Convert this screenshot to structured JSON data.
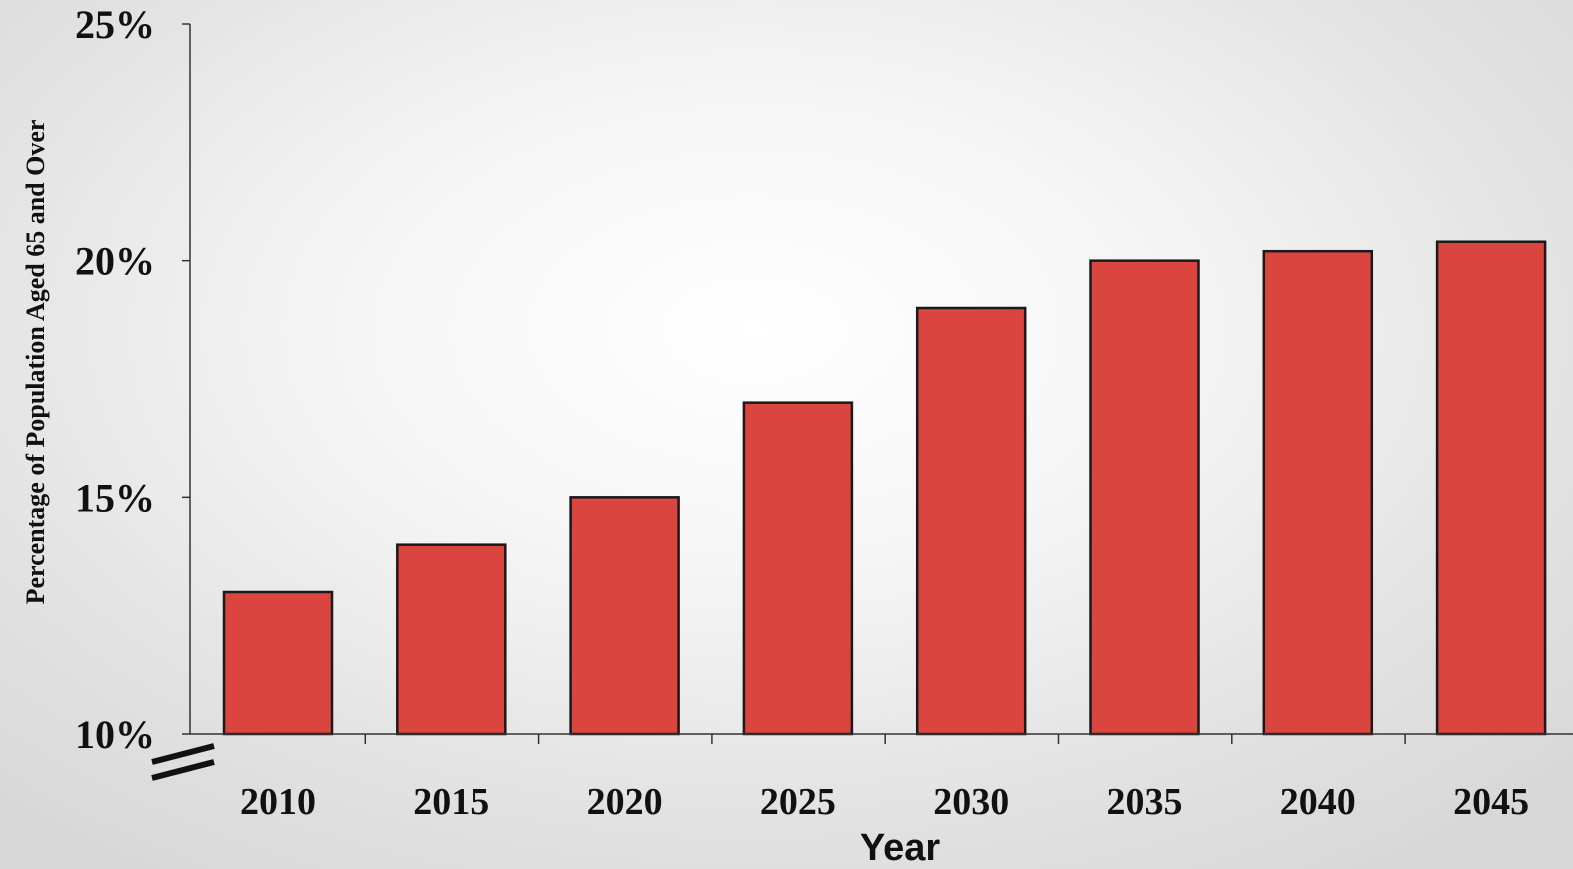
{
  "chart_data": {
    "type": "bar",
    "categories": [
      "2010",
      "2015",
      "2020",
      "2025",
      "2030",
      "2035",
      "2040",
      "2045"
    ],
    "series": [
      {
        "values": [
          13.0,
          14.0,
          15.0,
          17.0,
          19.0,
          20.0,
          20.2,
          20.4
        ]
      }
    ],
    "xlabel": "Year",
    "ylabel": "Percentage of Population Aged 65 and Over",
    "ylim": [
      10,
      25
    ],
    "yticks": [
      10,
      15,
      20,
      25
    ],
    "ytick_labels": [
      "10%",
      "15%",
      "20%",
      "25%"
    ],
    "axis_break": true,
    "grid": false,
    "legend": "none",
    "colors": {
      "bar": "#da4540",
      "bar_edge": "#1a1a1a",
      "axis": "#333333"
    }
  }
}
